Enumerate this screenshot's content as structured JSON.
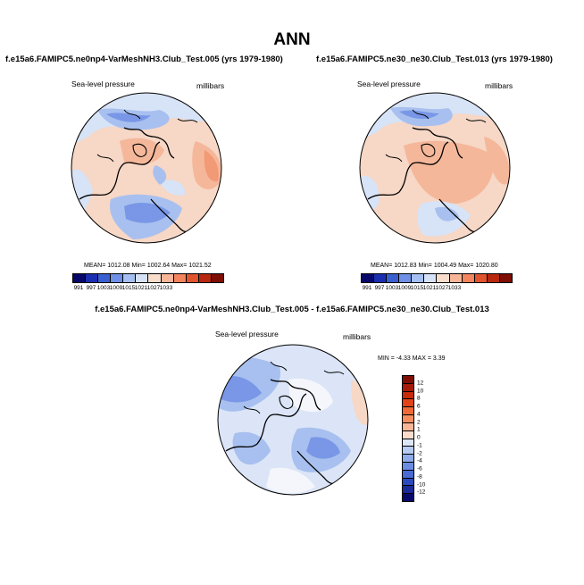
{
  "title": "ANN",
  "panels": [
    {
      "case": "f.e15a6.FAMIPC5.ne0np4-VarMeshNH3.Club_Test.005 (yrs 1979-1980)",
      "variable": "Sea-level pressure",
      "units": "millibars",
      "stats": "MEAN= 1012.08  Min= 1002.64  Max= 1021.52"
    },
    {
      "case": "f.e15a6.FAMIPC5.ne30_ne30.Club_Test.013 (yrs 1979-1980)",
      "variable": "Sea-level pressure",
      "units": "millibars",
      "stats": "MEAN= 1012.83  Min= 1004.49  Max= 1020.80"
    }
  ],
  "diff": {
    "title": "f.e15a6.FAMIPC5.ne0np4-VarMeshNH3.Club_Test.005 - f.e15a6.FAMIPC5.ne30_ne30.Club_Test.013",
    "variable": "Sea-level pressure",
    "units": "millibars",
    "stats": "MIN =  -4.33 MAX =   3.39"
  },
  "colorbar_abs": {
    "labels": [
      "991",
      "997",
      "1003",
      "1009",
      "1015",
      "1021",
      "1027",
      "1033"
    ],
    "colors": [
      "#08086b",
      "#1a2fb0",
      "#3a5fd0",
      "#6f8fe6",
      "#a6bff2",
      "#d6e2f7",
      "#f8dccc",
      "#f7b698",
      "#f2845e",
      "#e0542e",
      "#b8280f",
      "#7e0d04"
    ]
  },
  "colorbar_diff": {
    "labels": [
      "12",
      "10",
      "8",
      "6",
      "4",
      "2",
      "1",
      "0",
      "-1",
      "-2",
      "-4",
      "-6",
      "-8",
      "-10",
      "-12"
    ],
    "colors": [
      "#7e0d04",
      "#a51a08",
      "#c82b0c",
      "#e04418",
      "#ee6a38",
      "#f48e60",
      "#f7b698",
      "#fbdccc",
      "#dce6f7",
      "#b7caf2",
      "#8faae9",
      "#6b8ce0",
      "#4a6bd6",
      "#2c48bf",
      "#1a2a98",
      "#080a6b"
    ]
  },
  "map_colors": {
    "slp_light_blue": "#d7e3f6",
    "slp_mid_blue": "#a8c0ef",
    "slp_blue": "#7997e6",
    "slp_peach": "#f7d7c6",
    "slp_salmon": "#f5b79a",
    "slp_orange": "#f29a75",
    "diff_white": "#f4f6fb",
    "diff_pale": "#dbe5f7"
  }
}
